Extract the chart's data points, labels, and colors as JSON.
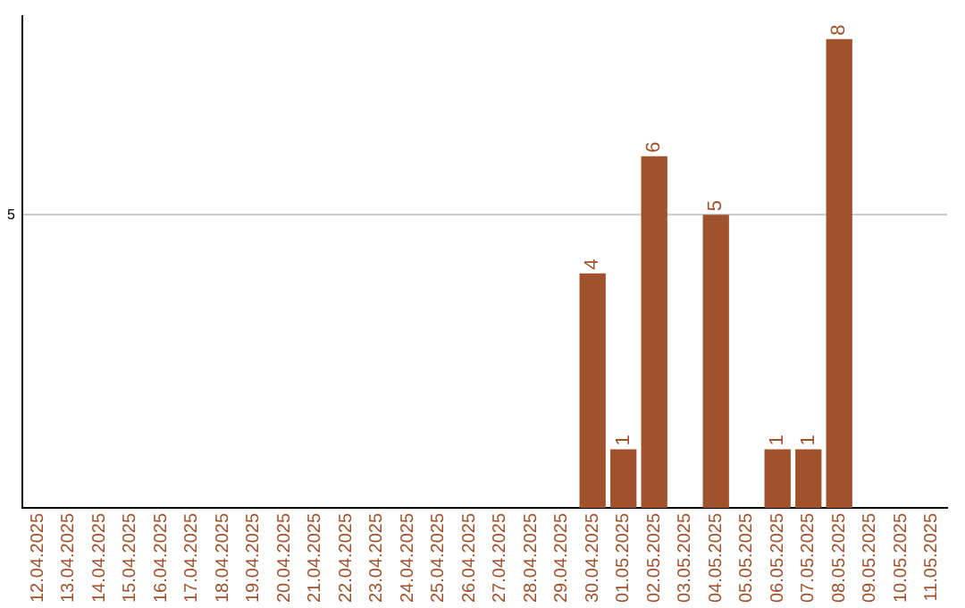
{
  "chart_data": {
    "type": "bar",
    "categories": [
      "12.04.2025",
      "13.04.2025",
      "14.04.2025",
      "15.04.2025",
      "16.04.2025",
      "17.04.2025",
      "18.04.2025",
      "19.04.2025",
      "20.04.2025",
      "21.04.2025",
      "22.04.2025",
      "23.04.2025",
      "24.04.2025",
      "25.04.2025",
      "26.04.2025",
      "27.04.2025",
      "28.04.2025",
      "29.04.2025",
      "30.04.2025",
      "01.05.2025",
      "02.05.2025",
      "03.05.2025",
      "04.05.2025",
      "05.05.2025",
      "06.05.2025",
      "07.05.2025",
      "08.05.2025",
      "09.05.2025",
      "10.05.2025",
      "11.05.2025"
    ],
    "values": [
      null,
      null,
      null,
      null,
      null,
      null,
      null,
      null,
      null,
      null,
      null,
      null,
      null,
      null,
      null,
      null,
      null,
      null,
      4,
      1,
      6,
      null,
      5,
      null,
      1,
      1,
      8,
      null,
      null,
      null
    ],
    "color": "#a0522d",
    "ylim": [
      0,
      8.4
    ],
    "yticks": [
      5
    ],
    "grid": "y",
    "data_labels": true,
    "legend": false
  }
}
